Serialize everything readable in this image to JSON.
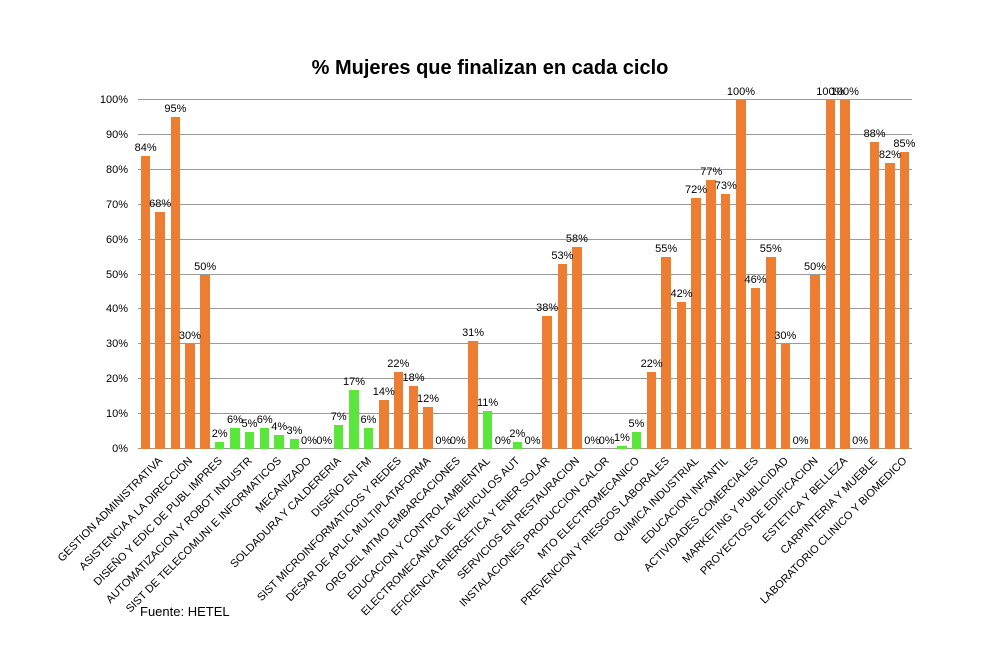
{
  "chart_data": {
    "type": "bar",
    "title": "% Mujeres que finalizan en cada ciclo",
    "source_note": "Fuente: HETEL",
    "xlabel": "",
    "ylabel": "",
    "ylim": [
      0,
      100
    ],
    "grid": true,
    "legend": "none",
    "y_tick_labels": [
      "0%",
      "10%",
      "20%",
      "30%",
      "40%",
      "50%",
      "60%",
      "70%",
      "80%",
      "90%",
      "100%"
    ],
    "value_label_suffix": "%",
    "bar_colors_hex": {
      "orange": "#ED7D31",
      "green": "#5BE63C"
    },
    "gridline_color": "#999999",
    "text_color": "#000000",
    "categories": [
      "GESTION ADMINISTRATIVA",
      "ASISTENCIA A LA DIRECCION",
      "DISEÑO Y EDIC DE PUBL IMPRES",
      "AUTOMATIZACION Y ROBOT INDUSTR",
      "SIST DE TELECOMUNI E INFORMATICOS",
      "MECANIZADO",
      "SOLDADURA Y CALDERERIA",
      "DISEÑO EN FM",
      "SIST MICROINFORMATICOS Y REDES",
      "DESAR DE APLIC MULTIPLATAFORMA",
      "ORG DEL MTMO EMBARCACIONES",
      "EDUCACION Y CONTROL AMBIENTAL",
      "ELECTROMECANICA DE VEHICULOS AUT",
      "EFICIENCIA ENERGETICA Y ENER SOLAR",
      "SERVICIOS EN RESTAURACION",
      "INSTALACIONES PRODUCCION CALOR",
      "MTO ELECTROMECANICO",
      "PREVENCION Y RIESGOS LABORALES",
      "QUIMICA INDUSTRIAL",
      "EDUCACION INFANTIL",
      "ACTIVIDADES COMERCIALES",
      "MARKETING Y PUBLICIDAD",
      "PROYECTOS DE EDIFICACION",
      "ESTETICA Y BELLEZA",
      "CARPINTERIA Y MUEBLE",
      "LABORATORIO CLINICO Y BIOMEDICO"
    ],
    "series": [
      {
        "name": "bar-1",
        "values": [
          84,
          95,
          50,
          6,
          6,
          3,
          0,
          17,
          14,
          18,
          0,
          31,
          0,
          0,
          53,
          0,
          1,
          22,
          42,
          77,
          100,
          55,
          0,
          100,
          0,
          82
        ],
        "colors": [
          "orange",
          "orange",
          "orange",
          "green",
          "green",
          "green",
          "green",
          "green",
          "orange",
          "orange",
          "orange",
          "orange",
          "green",
          "orange",
          "orange",
          "orange",
          "green",
          "orange",
          "orange",
          "orange",
          "orange",
          "orange",
          "orange",
          "orange",
          "orange",
          "orange"
        ]
      },
      {
        "name": "bar-2",
        "values": [
          68,
          30,
          2,
          5,
          4,
          0,
          7,
          6,
          22,
          12,
          0,
          11,
          2,
          38,
          58,
          0,
          5,
          55,
          72,
          73,
          46,
          30,
          50,
          100,
          88,
          85
        ],
        "colors": [
          "orange",
          "orange",
          "green",
          "green",
          "green",
          "green",
          "green",
          "green",
          "orange",
          "orange",
          "orange",
          "green",
          "green",
          "orange",
          "orange",
          "orange",
          "green",
          "orange",
          "orange",
          "orange",
          "orange",
          "orange",
          "orange",
          "orange",
          "orange",
          "orange"
        ]
      }
    ]
  }
}
